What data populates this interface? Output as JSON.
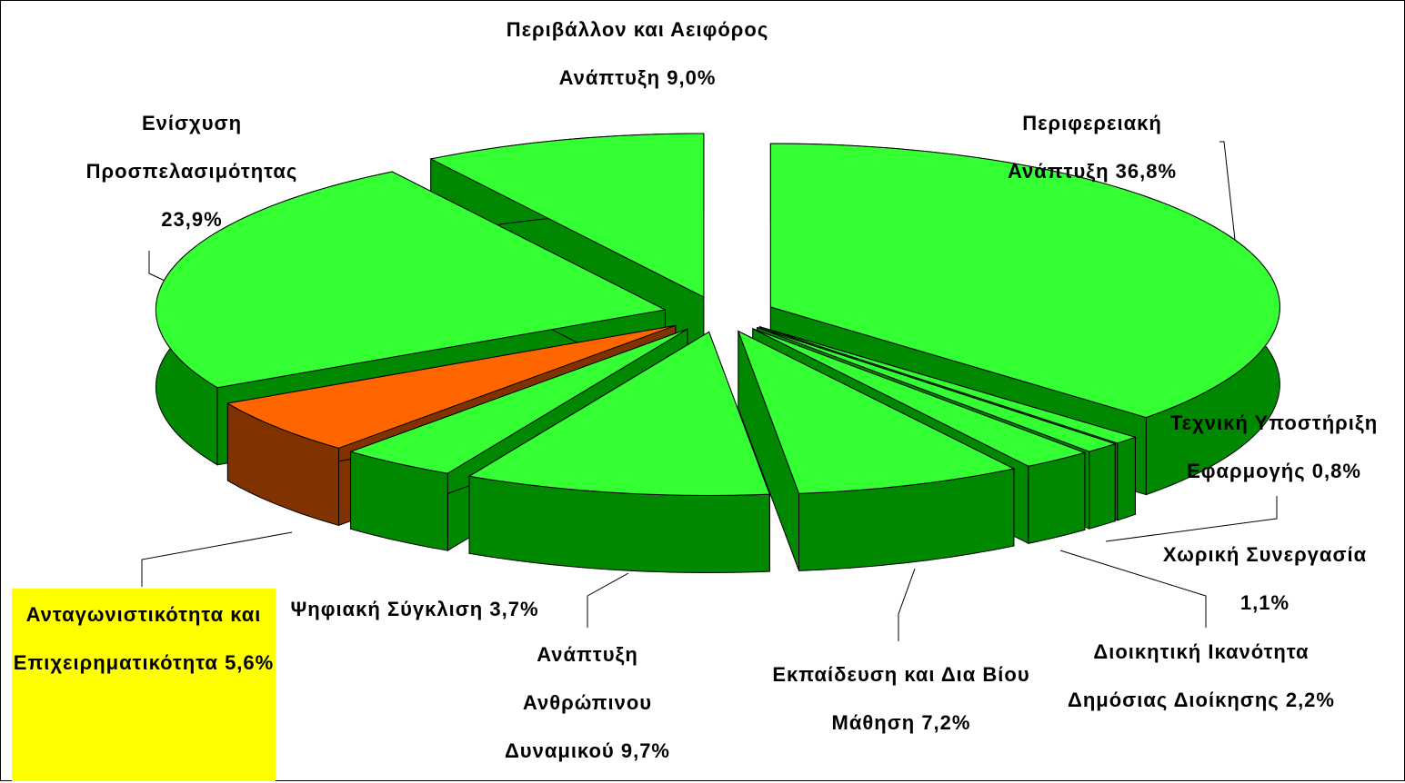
{
  "chart_data": {
    "type": "pie3d",
    "categories": [
      "Περιφερειακή Ανάπτυξη",
      "Τεχνική Υποστήριξη Εφαρμογής",
      "Χωρική Συνεργασία",
      "Διοικητική Ικανότητα Δημόσιας Διοίκησης",
      "Εκπαίδευση και Δια Βίου Μάθηση",
      "Ανάπτυξη Ανθρώπινου Δυναμικού",
      "Ψηφιακή Σύγκλιση",
      "Ανταγωνιστικότητα και Επιχειρηματικότητα",
      "Ενίσχυση Προσπελασιμότητας",
      "Περιβάλλον και Αειφόρος Ανάπτυξη"
    ],
    "values": [
      36.8,
      0.8,
      1.1,
      2.2,
      7.2,
      9.7,
      3.7,
      5.6,
      23.9,
      9.0
    ],
    "value_labels": [
      "36,8%",
      "0,8%",
      "1,1%",
      "2,2%",
      "7,2%",
      "9,7%",
      "3,7%",
      "5,6%",
      "23,9%",
      "9,0%"
    ],
    "colors": [
      "#33ff33",
      "#33ff33",
      "#33ff33",
      "#33ff33",
      "#33ff33",
      "#33ff33",
      "#33ff33",
      "#ff6600",
      "#33ff33",
      "#33ff33"
    ],
    "side_colors": [
      "#008800",
      "#008800",
      "#008800",
      "#008800",
      "#008800",
      "#008800",
      "#008800",
      "#803300",
      "#008800",
      "#008800"
    ]
  }
}
